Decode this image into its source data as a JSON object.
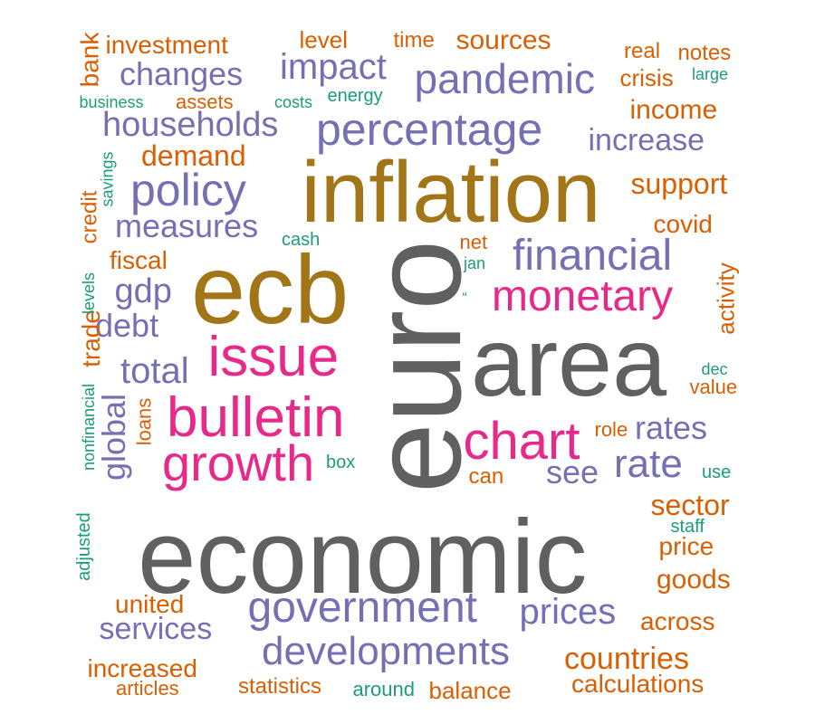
{
  "colors": {
    "gray": "#606060",
    "gold": "#a27518",
    "purple": "#7570b3",
    "pink": "#e7298a",
    "orange": "#d95f02",
    "teal": "#1b9e77"
  },
  "words": [
    {
      "id": "economic",
      "text": "economic",
      "color": "gray"
    },
    {
      "id": "euro",
      "text": "euro",
      "color": "gray"
    },
    {
      "id": "area",
      "text": "area",
      "color": "gray"
    },
    {
      "id": "inflation",
      "text": "inflation",
      "color": "gold"
    },
    {
      "id": "ecb",
      "text": "ecb",
      "color": "gold"
    },
    {
      "id": "issue",
      "text": "issue",
      "color": "pink"
    },
    {
      "id": "bulletin",
      "text": "bulletin",
      "color": "pink"
    },
    {
      "id": "growth",
      "text": "growth",
      "color": "pink"
    },
    {
      "id": "monetary",
      "text": "monetary",
      "color": "pink"
    },
    {
      "id": "chart",
      "text": "chart",
      "color": "pink"
    },
    {
      "id": "financial",
      "text": "financial",
      "color": "purple"
    },
    {
      "id": "government",
      "text": "government",
      "color": "purple"
    },
    {
      "id": "developments",
      "text": "developments",
      "color": "purple"
    },
    {
      "id": "percentage",
      "text": "percentage",
      "color": "purple"
    },
    {
      "id": "pandemic",
      "text": "pandemic",
      "color": "purple"
    },
    {
      "id": "policy",
      "text": "policy",
      "color": "purple"
    },
    {
      "id": "households",
      "text": "households",
      "color": "purple"
    },
    {
      "id": "impact",
      "text": "impact",
      "color": "purple"
    },
    {
      "id": "changes",
      "text": "changes",
      "color": "purple"
    },
    {
      "id": "measures",
      "text": "measures",
      "color": "purple"
    },
    {
      "id": "total",
      "text": "total",
      "color": "purple"
    },
    {
      "id": "gdp",
      "text": "gdp",
      "color": "purple"
    },
    {
      "id": "debt",
      "text": "debt",
      "color": "purple"
    },
    {
      "id": "rate",
      "text": "rate",
      "color": "purple"
    },
    {
      "id": "rates",
      "text": "rates",
      "color": "purple"
    },
    {
      "id": "see",
      "text": "see",
      "color": "purple"
    },
    {
      "id": "prices",
      "text": "prices",
      "color": "purple"
    },
    {
      "id": "services",
      "text": "services",
      "color": "purple"
    },
    {
      "id": "increase",
      "text": "increase",
      "color": "purple"
    },
    {
      "id": "global",
      "text": "global",
      "color": "purple"
    },
    {
      "id": "investment",
      "text": "investment",
      "color": "orange"
    },
    {
      "id": "bank",
      "text": "bank",
      "color": "orange"
    },
    {
      "id": "level",
      "text": "level",
      "color": "orange"
    },
    {
      "id": "time",
      "text": "time",
      "color": "orange"
    },
    {
      "id": "sources",
      "text": "sources",
      "color": "orange"
    },
    {
      "id": "real",
      "text": "real",
      "color": "orange"
    },
    {
      "id": "notes",
      "text": "notes",
      "color": "orange"
    },
    {
      "id": "crisis",
      "text": "crisis",
      "color": "orange"
    },
    {
      "id": "assets",
      "text": "assets",
      "color": "orange"
    },
    {
      "id": "income",
      "text": "income",
      "color": "orange"
    },
    {
      "id": "demand",
      "text": "demand",
      "color": "orange"
    },
    {
      "id": "support",
      "text": "support",
      "color": "orange"
    },
    {
      "id": "covid",
      "text": "covid",
      "color": "orange"
    },
    {
      "id": "credit",
      "text": "credit",
      "color": "orange"
    },
    {
      "id": "fiscal",
      "text": "fiscal",
      "color": "orange"
    },
    {
      "id": "net",
      "text": "net",
      "color": "orange"
    },
    {
      "id": "activity",
      "text": "activity",
      "color": "orange"
    },
    {
      "id": "trade",
      "text": "trade",
      "color": "orange"
    },
    {
      "id": "value",
      "text": "value",
      "color": "orange"
    },
    {
      "id": "loans",
      "text": "loans",
      "color": "orange"
    },
    {
      "id": "role",
      "text": "role",
      "color": "orange"
    },
    {
      "id": "can",
      "text": "can",
      "color": "orange"
    },
    {
      "id": "sector",
      "text": "sector",
      "color": "orange"
    },
    {
      "id": "price",
      "text": "price",
      "color": "orange"
    },
    {
      "id": "goods",
      "text": "goods",
      "color": "orange"
    },
    {
      "id": "united",
      "text": "united",
      "color": "orange"
    },
    {
      "id": "across",
      "text": "across",
      "color": "orange"
    },
    {
      "id": "countries",
      "text": "countries",
      "color": "orange"
    },
    {
      "id": "increased",
      "text": "increased",
      "color": "orange"
    },
    {
      "id": "calculations",
      "text": "calculations",
      "color": "orange"
    },
    {
      "id": "articles",
      "text": "articles",
      "color": "orange"
    },
    {
      "id": "statistics",
      "text": "statistics",
      "color": "orange"
    },
    {
      "id": "balance",
      "text": "balance",
      "color": "orange"
    },
    {
      "id": "business",
      "text": "business",
      "color": "teal"
    },
    {
      "id": "costs",
      "text": "costs",
      "color": "teal"
    },
    {
      "id": "energy",
      "text": "energy",
      "color": "teal"
    },
    {
      "id": "large",
      "text": "large",
      "color": "teal"
    },
    {
      "id": "savings",
      "text": "savings",
      "color": "teal"
    },
    {
      "id": "cash",
      "text": "cash",
      "color": "teal"
    },
    {
      "id": "jan",
      "text": "jan",
      "color": "teal"
    },
    {
      "id": "quote",
      "text": "“",
      "color": "teal"
    },
    {
      "id": "levels",
      "text": "levels",
      "color": "teal"
    },
    {
      "id": "nonfinancial",
      "text": "nonfinancial",
      "color": "teal"
    },
    {
      "id": "dec",
      "text": "dec",
      "color": "teal"
    },
    {
      "id": "box",
      "text": "box",
      "color": "teal"
    },
    {
      "id": "use",
      "text": "use",
      "color": "teal"
    },
    {
      "id": "staff",
      "text": "staff",
      "color": "teal"
    },
    {
      "id": "adjusted",
      "text": "adjusted",
      "color": "teal"
    },
    {
      "id": "around",
      "text": "around",
      "color": "teal"
    }
  ]
}
